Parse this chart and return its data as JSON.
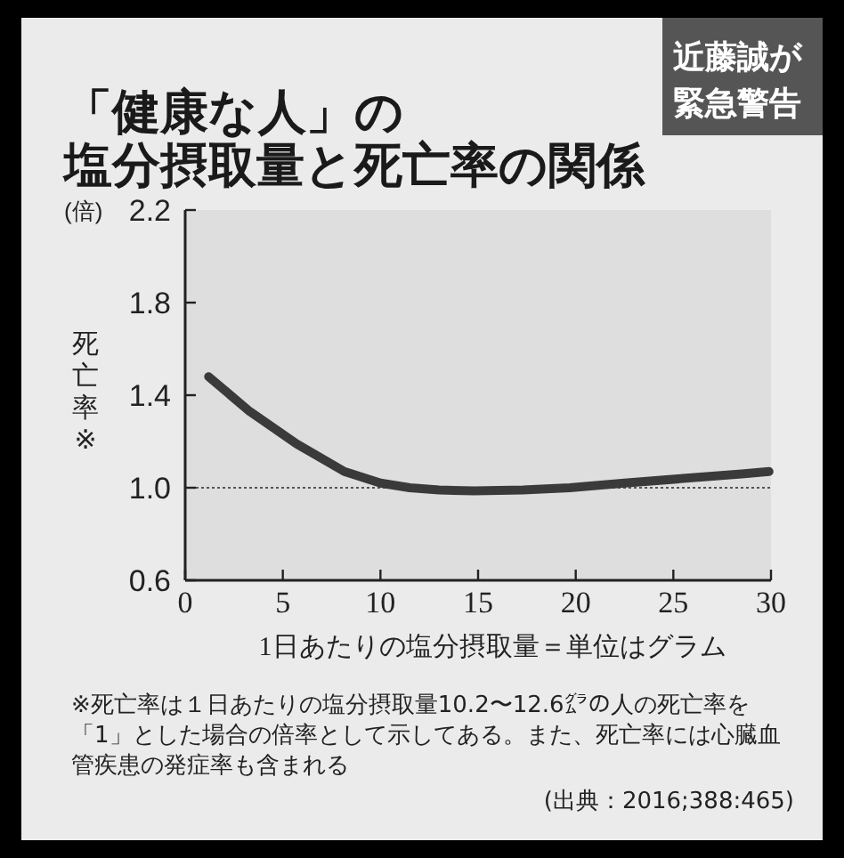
{
  "chart_data": {
    "type": "line",
    "title": "「健康な人」の",
    "subtitle": "塩分摂取量と死亡率の関係",
    "xlabel": "1日あたりの塩分摂取量＝単位はグラム",
    "ylabel": "死亡率※",
    "annotations": [
      "(倍)",
      "近藤誠が",
      "緊急警告",
      "※死亡率は１日あたりの塩分摂取量10.2〜12.6㌘の人の死亡率を「1」とした場合の倍率として示してある。また、死亡率には心臓血管疾患の発症率も含まれる",
      "(出典：2016;388:465)"
    ],
    "xlim": [
      0,
      30
    ],
    "xticks": [
      0,
      5,
      10,
      15,
      20,
      25,
      30
    ],
    "ylim": [
      0.6,
      2.2
    ],
    "yticks": [
      0.6,
      {
        "value": 1.0,
        "label": "1.0"
      },
      1.4,
      1.8,
      2.2
    ],
    "ref_lines": [
      {
        "axis": "y",
        "value": 1.0,
        "color": "#555555",
        "line_style": "dotted"
      }
    ],
    "grid": false,
    "marker": "none",
    "line_style": "solid",
    "series": [
      {
        "color": "#3a3a3a",
        "x": [
          1.2,
          3.3,
          5.7,
          8.15,
          10,
          11.5,
          13,
          14.8,
          17.3,
          19.7,
          22.5,
          25.5,
          28.5,
          29.9
        ],
        "values": [
          1.48,
          1.33,
          1.19,
          1.07,
          1.02,
          1.0,
          0.99,
          0.987,
          0.99,
          1.0,
          1.02,
          1.04,
          1.06,
          1.07
        ]
      }
    ]
  }
}
